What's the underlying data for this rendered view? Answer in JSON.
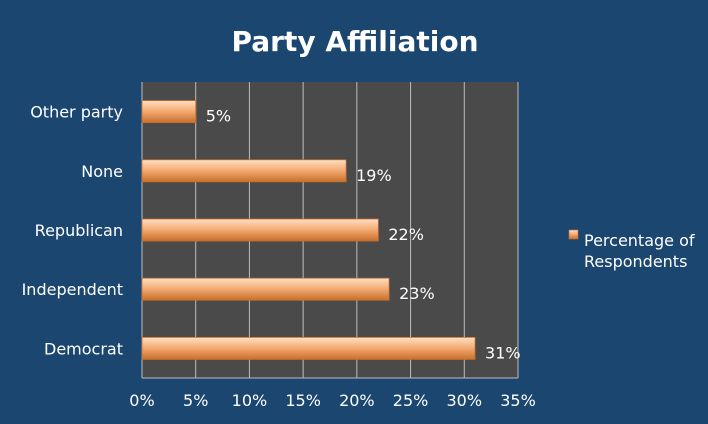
{
  "chart_data": {
    "type": "bar",
    "orientation": "horizontal",
    "title": "Party Affiliation",
    "categories": [
      "Democrat",
      "Independent",
      "Republican",
      "None",
      "Other party"
    ],
    "series": [
      {
        "name": "Percentage of Respondents",
        "values": [
          31,
          23,
          22,
          19,
          5
        ]
      }
    ],
    "data_labels": [
      "31%",
      "23%",
      "22%",
      "19%",
      "5%"
    ],
    "x_ticks": [
      "0%",
      "5%",
      "10%",
      "15%",
      "20%",
      "25%",
      "30%",
      "35%"
    ],
    "xlim": [
      0,
      35
    ],
    "unit": "%",
    "grid": true,
    "legend": {
      "position": "right",
      "lines": [
        "Percentage of",
        "Respondents"
      ]
    },
    "colors": {
      "background": "#1b4670",
      "plot_area": "#4a4a4a",
      "bar_light": "#fde0c6",
      "bar_mid": "#f6ae76",
      "bar_dark": "#c96f2c",
      "gridline": "#bdbdbd",
      "text": "#ffffff"
    }
  }
}
